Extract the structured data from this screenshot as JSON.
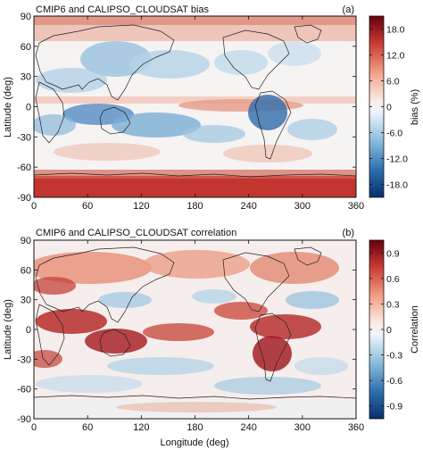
{
  "chart_data": [
    {
      "type": "heatmap",
      "title": "CMIP6 and CALIPSO_CLOUDSAT bias",
      "panel_label": "(a)",
      "ylabel": "Latitude (deg)",
      "xlabel": "",
      "xlim": [
        0,
        360
      ],
      "ylim": [
        -90,
        90
      ],
      "x_ticks": [
        "0",
        "60",
        "120",
        "180",
        "240",
        "300",
        "360"
      ],
      "y_ticks": [
        "90",
        "60",
        "30",
        "0",
        "-30",
        "-60",
        "-90"
      ],
      "colorbar": {
        "label": "bias (%)",
        "range": [
          -21,
          21
        ],
        "ticks": [
          "18.0",
          "12.0",
          "6.0",
          "0",
          "-6.0",
          "-12.0",
          "-18.0"
        ],
        "cmap": "RdBu_r"
      },
      "grid": false
    },
    {
      "type": "heatmap",
      "title": "CMIP6 and CALIPSO_CLOUDSAT correlation",
      "panel_label": "(b)",
      "ylabel": "Latitude (deg)",
      "xlabel": "Longitude (deg)",
      "xlim": [
        0,
        360
      ],
      "ylim": [
        -90,
        90
      ],
      "x_ticks": [
        "0",
        "60",
        "120",
        "180",
        "240",
        "300",
        "360"
      ],
      "y_ticks": [
        "90",
        "60",
        "30",
        "0",
        "-30",
        "-60",
        "-90"
      ],
      "colorbar": {
        "label": "Correlation",
        "range": [
          -1.05,
          1.05
        ],
        "ticks": [
          "0.9",
          "0.6",
          "0.3",
          "0",
          "-0.3",
          "-0.6",
          "-0.9"
        ],
        "cmap": "RdBu_r"
      },
      "grid": false
    }
  ]
}
